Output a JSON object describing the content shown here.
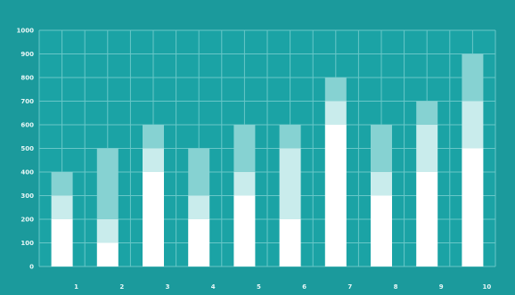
{
  "chart_data": {
    "type": "bar",
    "stacked": true,
    "categories": [
      "1",
      "2",
      "3",
      "4",
      "5",
      "6",
      "7",
      "8",
      "9",
      "10"
    ],
    "series": [
      {
        "values": [
          200,
          100,
          400,
          200,
          300,
          200,
          600,
          300,
          400,
          500
        ]
      },
      {
        "values": [
          100,
          100,
          100,
          100,
          100,
          300,
          100,
          100,
          200,
          200
        ]
      },
      {
        "values": [
          100,
          300,
          100,
          200,
          200,
          100,
          100,
          200,
          100,
          200
        ]
      }
    ],
    "ylim": [
      0,
      1000
    ],
    "yticks": [
      0,
      100,
      200,
      300,
      400,
      500,
      600,
      700,
      800,
      900,
      1000
    ],
    "grid": true,
    "colors": {
      "frame_background": "#1b9a9c",
      "plot_background": "#1ba3a5",
      "grid": "#68c7c8",
      "axis_text": "#e8f7f7",
      "series": [
        "#ffffff",
        "#c9ecec",
        "#86d2d2"
      ]
    }
  }
}
